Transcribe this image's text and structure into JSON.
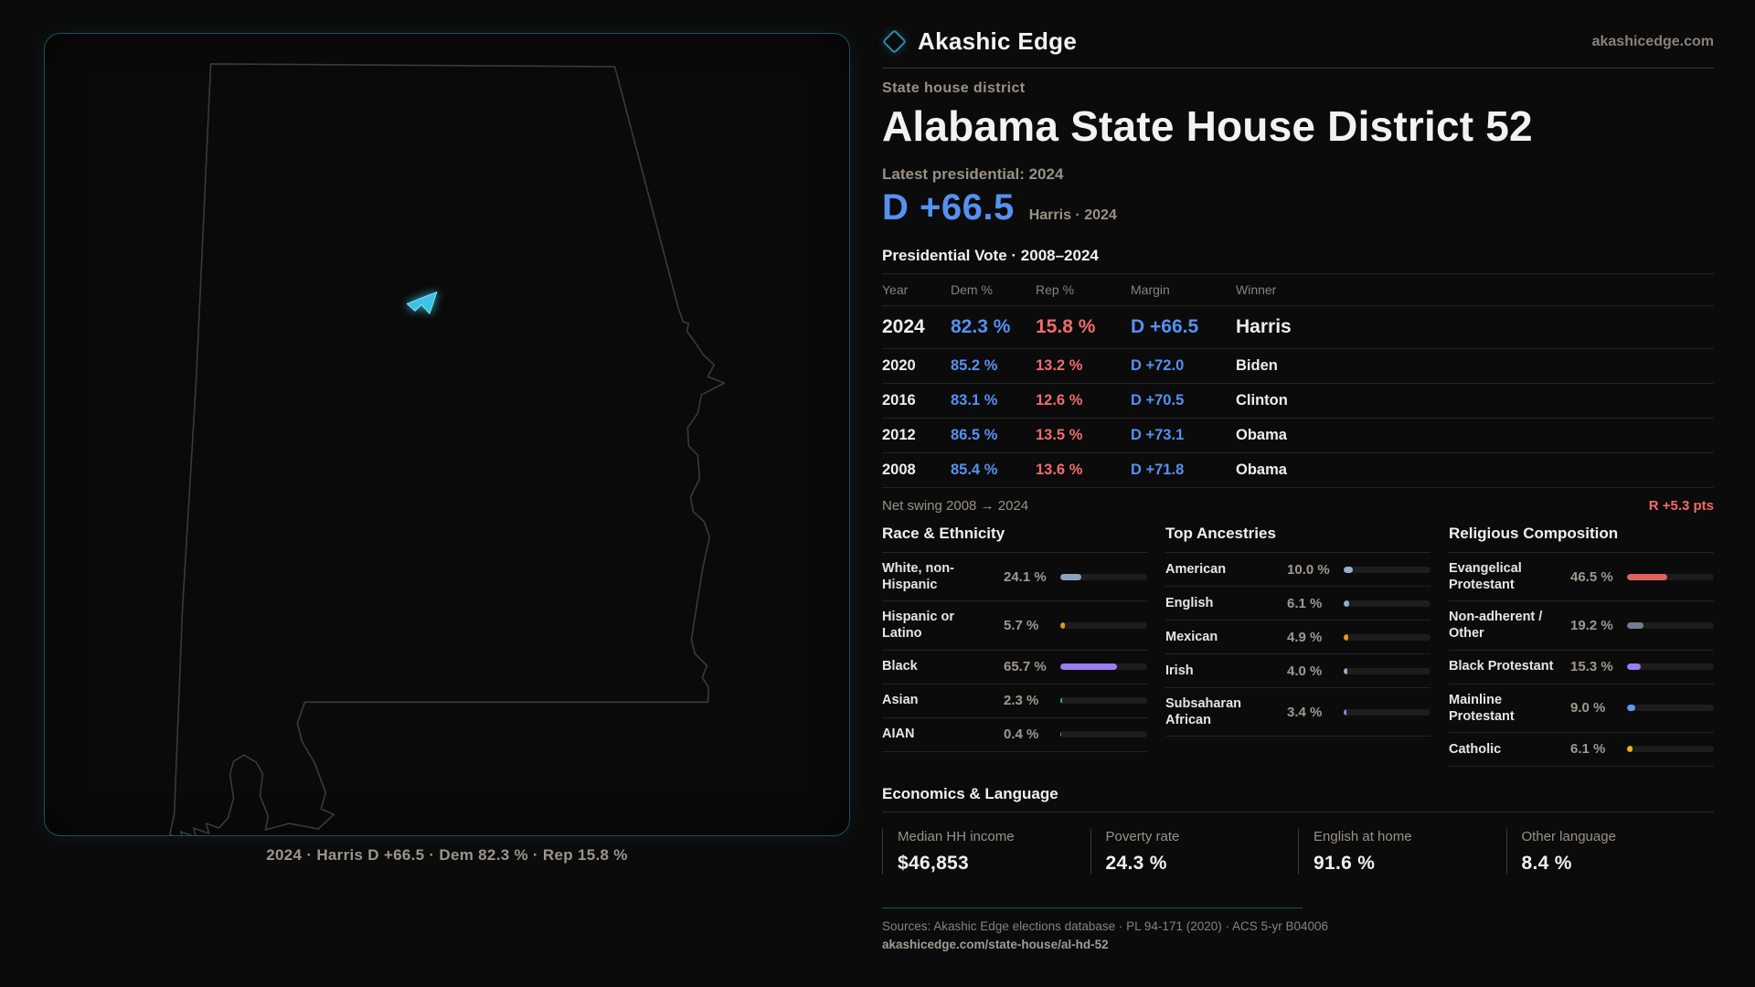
{
  "brand": {
    "name": "Akashic Edge",
    "site": "akashicedge.com"
  },
  "page": {
    "kicker": "State house district",
    "title": "Alabama State House District 52",
    "latest_label": "Latest presidential: 2024",
    "margin_value": "D +66.5",
    "margin_context": "Harris · 2024"
  },
  "map": {
    "caption": "2024 · Harris D +66.5 · Dem 82.3 % · Rep 15.8 %",
    "district_color": "#3ac3e6",
    "outline_color": "#3a3a3a",
    "panel_border_color": "#1e4f5e"
  },
  "vote": {
    "title": "Presidential Vote · 2008–2024",
    "columns": [
      "Year",
      "Dem %",
      "Rep %",
      "Margin",
      "Winner"
    ],
    "rows": [
      {
        "year": "2024",
        "dem": "82.3 %",
        "rep": "15.8 %",
        "margin": "D +66.5",
        "winner": "Harris"
      },
      {
        "year": "2020",
        "dem": "85.2 %",
        "rep": "13.2 %",
        "margin": "D +72.0",
        "winner": "Biden"
      },
      {
        "year": "2016",
        "dem": "83.1 %",
        "rep": "12.6 %",
        "margin": "D +70.5",
        "winner": "Clinton"
      },
      {
        "year": "2012",
        "dem": "86.5 %",
        "rep": "13.5 %",
        "margin": "D +73.1",
        "winner": "Obama"
      },
      {
        "year": "2008",
        "dem": "85.4 %",
        "rep": "13.6 %",
        "margin": "D +71.8",
        "winner": "Obama"
      }
    ],
    "net_swing_label": "Net swing 2008 → 2024",
    "net_swing_value": "R +5.3 pts"
  },
  "demographics": [
    {
      "title": "Race & Ethnicity",
      "rows": [
        {
          "label": "White, non-Hispanic",
          "value": "24.1 %",
          "pct": 24.1,
          "color": "#8da2b8"
        },
        {
          "label": "Hispanic or Latino",
          "value": "5.7 %",
          "pct": 5.7,
          "color": "#e09b15"
        },
        {
          "label": "Black",
          "value": "65.7 %",
          "pct": 65.7,
          "color": "#9b7df0"
        },
        {
          "label": "Asian",
          "value": "2.3 %",
          "pct": 2.3,
          "color": "#2bb98a"
        },
        {
          "label": "AIAN",
          "value": "0.4 %",
          "pct": 0.4,
          "color": "#2bb98a"
        }
      ]
    },
    {
      "title": "Top Ancestries",
      "rows": [
        {
          "label": "American",
          "value": "10.0 %",
          "pct": 10.0,
          "color": "#93aecd"
        },
        {
          "label": "English",
          "value": "6.1 %",
          "pct": 6.1,
          "color": "#93aecd"
        },
        {
          "label": "Mexican",
          "value": "4.9 %",
          "pct": 4.9,
          "color": "#e09b15"
        },
        {
          "label": "Irish",
          "value": "4.0 %",
          "pct": 4.0,
          "color": "#93aecd"
        },
        {
          "label": "Subsaharan African",
          "value": "3.4 %",
          "pct": 3.4,
          "color": "#9b7df0"
        }
      ]
    },
    {
      "title": "Religious Composition",
      "rows": [
        {
          "label": "Evangelical Protestant",
          "value": "46.5 %",
          "pct": 46.5,
          "color": "#e06262"
        },
        {
          "label": "Non-adherent / Other",
          "value": "19.2 %",
          "pct": 19.2,
          "color": "#6e7f91"
        },
        {
          "label": "Black Protestant",
          "value": "15.3 %",
          "pct": 15.3,
          "color": "#9b7df0"
        },
        {
          "label": "Mainline Protestant",
          "value": "9.0 %",
          "pct": 9.0,
          "color": "#5b9af5"
        },
        {
          "label": "Catholic",
          "value": "6.1 %",
          "pct": 6.1,
          "color": "#e8b41c"
        }
      ]
    }
  ],
  "economics": {
    "title": "Economics & Language",
    "stats": [
      {
        "label": "Median HH income",
        "value": "$46,853"
      },
      {
        "label": "Poverty rate",
        "value": "24.3 %"
      },
      {
        "label": "English at home",
        "value": "91.6 %"
      },
      {
        "label": "Other language",
        "value": "8.4 %"
      }
    ]
  },
  "footer": {
    "sources": "Sources: Akashic Edge elections database · PL 94-171 (2020) · ACS 5-yr B04006",
    "permalink": "akashicedge.com/state-house/al-hd-52"
  },
  "colors": {
    "dem_blue": "#5591f2",
    "rep_red": "#ef6c6c",
    "accent_teal": "#2e8ba0"
  },
  "chart_data": [
    {
      "type": "table",
      "title": "Presidential Vote · 2008–2024",
      "columns": [
        "Year",
        "Dem %",
        "Rep %",
        "Margin",
        "Winner"
      ],
      "rows": [
        [
          "2024",
          82.3,
          15.8,
          "D +66.5",
          "Harris"
        ],
        [
          "2020",
          85.2,
          13.2,
          "D +72.0",
          "Biden"
        ],
        [
          "2016",
          83.1,
          12.6,
          "D +70.5",
          "Clinton"
        ],
        [
          "2012",
          86.5,
          13.5,
          "D +73.1",
          "Obama"
        ],
        [
          "2008",
          85.4,
          13.6,
          "D +71.8",
          "Obama"
        ]
      ],
      "annotations": [
        "Net swing 2008 → 2024: R +5.3 pts",
        "Latest presidential 2024: D +66.5 (Harris)"
      ]
    },
    {
      "type": "bar",
      "title": "Race & Ethnicity",
      "categories": [
        "White, non-Hispanic",
        "Hispanic or Latino",
        "Black",
        "Asian",
        "AIAN"
      ],
      "values": [
        24.1,
        5.7,
        65.7,
        2.3,
        0.4
      ],
      "xlabel": "",
      "ylabel": "%",
      "ylim": [
        0,
        100
      ]
    },
    {
      "type": "bar",
      "title": "Top Ancestries",
      "categories": [
        "American",
        "English",
        "Mexican",
        "Irish",
        "Subsaharan African"
      ],
      "values": [
        10.0,
        6.1,
        4.9,
        4.0,
        3.4
      ],
      "xlabel": "",
      "ylabel": "%",
      "ylim": [
        0,
        100
      ]
    },
    {
      "type": "bar",
      "title": "Religious Composition",
      "categories": [
        "Evangelical Protestant",
        "Non-adherent / Other",
        "Black Protestant",
        "Mainline Protestant",
        "Catholic"
      ],
      "values": [
        46.5,
        19.2,
        15.3,
        9.0,
        6.1
      ],
      "xlabel": "",
      "ylabel": "%",
      "ylim": [
        0,
        100
      ]
    },
    {
      "type": "bar",
      "title": "Economics & Language",
      "categories": [
        "Median HH income",
        "Poverty rate",
        "English at home",
        "Other language"
      ],
      "values": [
        46853,
        24.3,
        91.6,
        8.4
      ]
    }
  ]
}
